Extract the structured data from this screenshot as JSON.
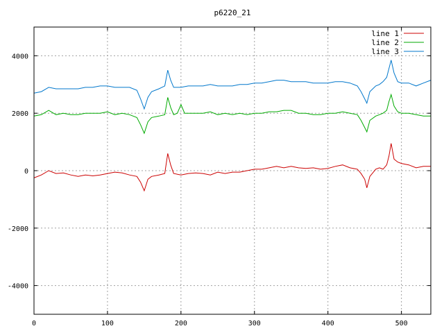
{
  "chart_data": {
    "type": "line",
    "title": "p6220_21",
    "xlabel": "",
    "ylabel": "",
    "xlim": [
      0,
      540
    ],
    "ylim": [
      -5000,
      5000
    ],
    "xticks": [
      0,
      100,
      200,
      300,
      400,
      500
    ],
    "yticks": [
      -4000,
      -2000,
      0,
      2000,
      4000
    ],
    "grid": true,
    "legend": "top-right",
    "series": [
      {
        "name": "line 1",
        "color": "#cc0000",
        "points": [
          [
            0,
            -250
          ],
          [
            10,
            -150
          ],
          [
            20,
            0
          ],
          [
            30,
            -100
          ],
          [
            40,
            -80
          ],
          [
            50,
            -150
          ],
          [
            60,
            -200
          ],
          [
            70,
            -150
          ],
          [
            80,
            -180
          ],
          [
            90,
            -150
          ],
          [
            100,
            -100
          ],
          [
            110,
            -50
          ],
          [
            120,
            -80
          ],
          [
            130,
            -150
          ],
          [
            140,
            -200
          ],
          [
            145,
            -400
          ],
          [
            150,
            -700
          ],
          [
            155,
            -300
          ],
          [
            160,
            -200
          ],
          [
            170,
            -150
          ],
          [
            178,
            -100
          ],
          [
            182,
            600
          ],
          [
            186,
            200
          ],
          [
            190,
            -100
          ],
          [
            200,
            -150
          ],
          [
            210,
            -100
          ],
          [
            220,
            -80
          ],
          [
            230,
            -100
          ],
          [
            240,
            -150
          ],
          [
            250,
            -50
          ],
          [
            260,
            -100
          ],
          [
            270,
            -50
          ],
          [
            280,
            -50
          ],
          [
            290,
            0
          ],
          [
            300,
            50
          ],
          [
            310,
            50
          ],
          [
            320,
            100
          ],
          [
            330,
            150
          ],
          [
            340,
            100
          ],
          [
            350,
            150
          ],
          [
            360,
            100
          ],
          [
            370,
            80
          ],
          [
            380,
            100
          ],
          [
            390,
            50
          ],
          [
            400,
            80
          ],
          [
            410,
            150
          ],
          [
            420,
            200
          ],
          [
            430,
            100
          ],
          [
            440,
            50
          ],
          [
            445,
            -100
          ],
          [
            450,
            -300
          ],
          [
            453,
            -600
          ],
          [
            457,
            -200
          ],
          [
            465,
            50
          ],
          [
            470,
            100
          ],
          [
            475,
            50
          ],
          [
            480,
            200
          ],
          [
            483,
            500
          ],
          [
            486,
            950
          ],
          [
            490,
            400
          ],
          [
            495,
            300
          ],
          [
            500,
            250
          ],
          [
            510,
            200
          ],
          [
            520,
            100
          ],
          [
            530,
            150
          ],
          [
            540,
            150
          ]
        ]
      },
      {
        "name": "line 2",
        "color": "#00aa00",
        "points": [
          [
            0,
            1900
          ],
          [
            10,
            1950
          ],
          [
            20,
            2100
          ],
          [
            30,
            1950
          ],
          [
            40,
            2000
          ],
          [
            50,
            1950
          ],
          [
            60,
            1950
          ],
          [
            70,
            2000
          ],
          [
            80,
            2000
          ],
          [
            90,
            2000
          ],
          [
            100,
            2050
          ],
          [
            110,
            1950
          ],
          [
            120,
            2000
          ],
          [
            130,
            1950
          ],
          [
            140,
            1850
          ],
          [
            145,
            1600
          ],
          [
            150,
            1300
          ],
          [
            155,
            1700
          ],
          [
            160,
            1850
          ],
          [
            170,
            1900
          ],
          [
            178,
            1950
          ],
          [
            182,
            2550
          ],
          [
            186,
            2200
          ],
          [
            190,
            1950
          ],
          [
            195,
            2000
          ],
          [
            200,
            2300
          ],
          [
            205,
            2000
          ],
          [
            210,
            2000
          ],
          [
            220,
            2000
          ],
          [
            230,
            2000
          ],
          [
            240,
            2050
          ],
          [
            250,
            1950
          ],
          [
            260,
            2000
          ],
          [
            270,
            1950
          ],
          [
            280,
            2000
          ],
          [
            290,
            1950
          ],
          [
            300,
            2000
          ],
          [
            310,
            2000
          ],
          [
            320,
            2050
          ],
          [
            330,
            2050
          ],
          [
            340,
            2100
          ],
          [
            350,
            2100
          ],
          [
            360,
            2000
          ],
          [
            370,
            2000
          ],
          [
            380,
            1950
          ],
          [
            390,
            1950
          ],
          [
            400,
            2000
          ],
          [
            410,
            2000
          ],
          [
            420,
            2050
          ],
          [
            430,
            2000
          ],
          [
            440,
            1950
          ],
          [
            445,
            1750
          ],
          [
            450,
            1500
          ],
          [
            453,
            1350
          ],
          [
            457,
            1750
          ],
          [
            465,
            1900
          ],
          [
            470,
            1950
          ],
          [
            475,
            2000
          ],
          [
            480,
            2100
          ],
          [
            483,
            2400
          ],
          [
            486,
            2650
          ],
          [
            490,
            2250
          ],
          [
            495,
            2050
          ],
          [
            500,
            2000
          ],
          [
            510,
            2000
          ],
          [
            520,
            1950
          ],
          [
            530,
            1900
          ],
          [
            540,
            1900
          ]
        ]
      },
      {
        "name": "line 3",
        "color": "#0077cc",
        "points": [
          [
            0,
            2700
          ],
          [
            10,
            2750
          ],
          [
            20,
            2900
          ],
          [
            30,
            2850
          ],
          [
            40,
            2850
          ],
          [
            50,
            2850
          ],
          [
            60,
            2850
          ],
          [
            70,
            2900
          ],
          [
            80,
            2900
          ],
          [
            90,
            2950
          ],
          [
            100,
            2950
          ],
          [
            110,
            2900
          ],
          [
            120,
            2900
          ],
          [
            130,
            2900
          ],
          [
            140,
            2800
          ],
          [
            145,
            2500
          ],
          [
            150,
            2150
          ],
          [
            155,
            2550
          ],
          [
            160,
            2750
          ],
          [
            170,
            2850
          ],
          [
            178,
            2950
          ],
          [
            182,
            3500
          ],
          [
            186,
            3150
          ],
          [
            190,
            2900
          ],
          [
            200,
            2900
          ],
          [
            210,
            2950
          ],
          [
            220,
            2950
          ],
          [
            230,
            2950
          ],
          [
            240,
            3000
          ],
          [
            250,
            2950
          ],
          [
            260,
            2950
          ],
          [
            270,
            2950
          ],
          [
            280,
            3000
          ],
          [
            290,
            3000
          ],
          [
            300,
            3050
          ],
          [
            310,
            3050
          ],
          [
            320,
            3100
          ],
          [
            330,
            3150
          ],
          [
            340,
            3150
          ],
          [
            350,
            3100
          ],
          [
            360,
            3100
          ],
          [
            370,
            3100
          ],
          [
            380,
            3050
          ],
          [
            390,
            3050
          ],
          [
            400,
            3050
          ],
          [
            410,
            3100
          ],
          [
            420,
            3100
          ],
          [
            430,
            3050
          ],
          [
            440,
            2950
          ],
          [
            445,
            2750
          ],
          [
            450,
            2500
          ],
          [
            453,
            2350
          ],
          [
            457,
            2750
          ],
          [
            465,
            2950
          ],
          [
            470,
            3000
          ],
          [
            475,
            3100
          ],
          [
            480,
            3250
          ],
          [
            483,
            3550
          ],
          [
            486,
            3850
          ],
          [
            490,
            3400
          ],
          [
            495,
            3100
          ],
          [
            500,
            3050
          ],
          [
            510,
            3050
          ],
          [
            520,
            2950
          ],
          [
            530,
            3050
          ],
          [
            540,
            3150
          ]
        ]
      }
    ]
  }
}
